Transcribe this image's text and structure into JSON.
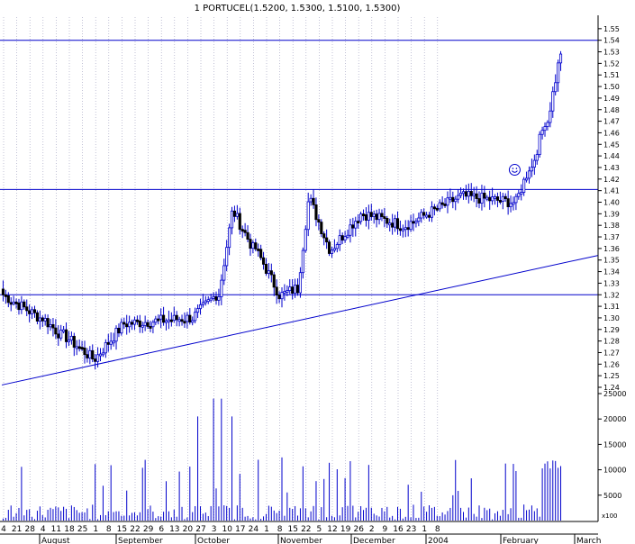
{
  "chart_data": {
    "type": "candlestick",
    "title": "1 PORTUCEL(1.5200, 1.5300, 1.5100, 1.5300)",
    "grid": true,
    "colors": {
      "line": "#0000cc",
      "up_body": "#ffffff",
      "down_body": "#000000",
      "volume": "#0000cc",
      "grid": "#9999bb"
    },
    "price_axis": {
      "ylim": [
        1.24,
        1.56
      ],
      "ticks": [
        "1.55",
        "1.54",
        "1.53",
        "1.52",
        "1.51",
        "1.50",
        "1.49",
        "1.48",
        "1.47",
        "1.46",
        "1.45",
        "1.44",
        "1.43",
        "1.42",
        "1.41",
        "1.40",
        "1.39",
        "1.38",
        "1.37",
        "1.36",
        "1.35",
        "1.34",
        "1.33",
        "1.32",
        "1.31",
        "1.30",
        "1.29",
        "1.28",
        "1.27",
        "1.26",
        "1.25",
        "1.24"
      ]
    },
    "volume_axis": {
      "ylim": [
        0,
        25000
      ],
      "ticks": [
        "25000",
        "20000",
        "15000",
        "10000",
        "5000"
      ],
      "multiplier_label": "x100"
    },
    "x_axis": {
      "day_labels": [
        "4",
        "21",
        "28",
        "4",
        "11",
        "18",
        "25",
        "1",
        "8",
        "15",
        "22",
        "29",
        "6",
        "13",
        "20",
        "27",
        "3",
        "10",
        "17",
        "24",
        "1",
        "8",
        "15",
        "22",
        "5",
        "12",
        "19",
        "26",
        "2",
        "9",
        "16",
        "23",
        "1",
        "8"
      ],
      "month_labels": [
        "August",
        "September",
        "October",
        "November",
        "December",
        "2004",
        "February",
        "March"
      ]
    },
    "horizontal_lines": [
      1.54,
      1.411,
      1.32
    ],
    "trendline": {
      "start": {
        "x": 0,
        "y": 1.242
      },
      "end": {
        "x": 212,
        "y": 1.354
      }
    },
    "annotation": "smiley",
    "annotation_point": {
      "x": 195,
      "y": 1.428
    },
    "segments": [
      {
        "len": 15,
        "from": 1.32,
        "to": 1.3
      },
      {
        "len": 8,
        "from": 1.3,
        "to": 1.285
      },
      {
        "len": 12,
        "from": 1.285,
        "to": 1.265
      },
      {
        "len": 12,
        "from": 1.265,
        "to": 1.295
      },
      {
        "len": 25,
        "from": 1.295,
        "to": 1.3
      },
      {
        "len": 10,
        "from": 1.3,
        "to": 1.32
      },
      {
        "len": 6,
        "from": 1.32,
        "to": 1.39
      },
      {
        "len": 8,
        "from": 1.39,
        "to": 1.36
      },
      {
        "len": 10,
        "from": 1.36,
        "to": 1.32
      },
      {
        "len": 6,
        "from": 1.32,
        "to": 1.325
      },
      {
        "len": 5,
        "from": 1.325,
        "to": 1.4
      },
      {
        "len": 8,
        "from": 1.4,
        "to": 1.36
      },
      {
        "len": 12,
        "from": 1.36,
        "to": 1.39
      },
      {
        "len": 16,
        "from": 1.39,
        "to": 1.38
      },
      {
        "len": 22,
        "from": 1.38,
        "to": 1.405
      },
      {
        "len": 20,
        "from": 1.405,
        "to": 1.4
      },
      {
        "len": 6,
        "from": 1.4,
        "to": 1.43
      },
      {
        "len": 6,
        "from": 1.43,
        "to": 1.47
      },
      {
        "len": 6,
        "from": 1.47,
        "to": 1.53
      }
    ]
  }
}
